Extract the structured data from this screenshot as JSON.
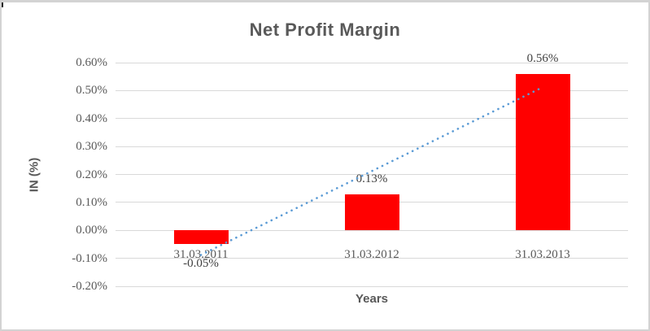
{
  "chart_data": {
    "type": "bar",
    "title": "Net Profit Margin",
    "xlabel": "Years",
    "ylabel": "IN (%)",
    "categories": [
      "31.03.2011",
      "31.03.2012",
      "31.03.2013"
    ],
    "series": [
      {
        "name": "Net Profit Margin",
        "color": "#FF0000",
        "values": [
          -0.05,
          0.13,
          0.56
        ]
      }
    ],
    "data_labels": [
      "-0.05%",
      "0.13%",
      "0.56%"
    ],
    "y_ticks": [
      {
        "label": "0.60%",
        "value": 0.6
      },
      {
        "label": "0.50%",
        "value": 0.5
      },
      {
        "label": "0.40%",
        "value": 0.4
      },
      {
        "label": "0.30%",
        "value": 0.3
      },
      {
        "label": "0.20%",
        "value": 0.2
      },
      {
        "label": "0.10%",
        "value": 0.1
      },
      {
        "label": "0.00%",
        "value": 0.0
      },
      {
        "label": "-0.10%",
        "value": -0.1
      },
      {
        "label": "-0.20%",
        "value": -0.2
      }
    ],
    "ylim": [
      -0.2,
      0.6
    ],
    "grid": true,
    "legend": "none",
    "trendline": {
      "type": "linear",
      "style": "dotted",
      "color": "#5B9BD5",
      "start": {
        "category_index": 0,
        "value": -0.088
      },
      "end": {
        "category_index": 2,
        "value": 0.512
      }
    }
  },
  "colors": {
    "bar": "#FF0000",
    "trendline": "#5B9BD5",
    "gridline": "#D9D9D9",
    "axis_text": "#595959",
    "data_label_text": "#3F3F3F",
    "title_text": "#595959",
    "frame_border": "#D3D3D3",
    "background": "#FFFFFF"
  }
}
